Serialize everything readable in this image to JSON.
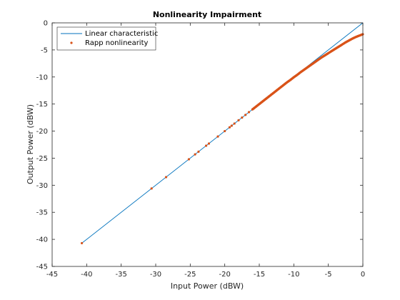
{
  "chart_data": {
    "type": "line",
    "title": "Nonlinearity Impairment",
    "xlabel": "Input Power (dBW)",
    "ylabel": "Output Power (dBW)",
    "xlim": [
      -45,
      0
    ],
    "ylim": [
      -45,
      0
    ],
    "xticks": [
      -45,
      -40,
      -35,
      -30,
      -25,
      -20,
      -15,
      -10,
      -5,
      0
    ],
    "yticks": [
      0,
      -5,
      -10,
      -15,
      -20,
      -25,
      -30,
      -35,
      -40,
      -45
    ],
    "grid": false,
    "legend_position": "top-left",
    "series": [
      {
        "name": "Linear characteristic",
        "style": "line",
        "color": "#0072BD",
        "x": [
          -40.7,
          0
        ],
        "y": [
          -40.7,
          0
        ]
      },
      {
        "name": "Rapp nonlinearity",
        "style": "markers",
        "marker": "dot",
        "color": "#D95319",
        "x": [
          -40.7,
          -30.6,
          -28.5,
          -25.2,
          -24.3,
          -23.8,
          -22.7,
          -22.3,
          -21.0,
          -20.0,
          -19.3,
          -19.0,
          -18.6,
          -18.0,
          -17.5,
          -17.0,
          -16.5,
          -16.0,
          -15.5,
          -15.0,
          -14.5,
          -14.0,
          -13.5,
          -13.0,
          -12.5,
          -12.0,
          -11.5,
          -11.0,
          -10.5,
          -10.0,
          -9.5,
          -9.0,
          -8.5,
          -8.0,
          -7.5,
          -7.0,
          -6.5,
          -6.0,
          -5.5,
          -5.0,
          -4.5,
          -4.0,
          -3.5,
          -3.0,
          -2.5,
          -2.0,
          -1.5,
          -1.0,
          -0.5,
          0
        ],
        "y": [
          -40.7,
          -30.6,
          -28.5,
          -25.2,
          -24.3,
          -23.8,
          -22.7,
          -22.3,
          -21.0,
          -20.0,
          -19.3,
          -19.0,
          -18.6,
          -18.0,
          -17.5,
          -17.0,
          -16.5,
          -16.0,
          -15.5,
          -15.0,
          -14.5,
          -14.0,
          -13.5,
          -13.0,
          -12.5,
          -12.0,
          -11.5,
          -11.0,
          -10.55,
          -10.05,
          -9.6,
          -9.1,
          -8.65,
          -8.2,
          -7.75,
          -7.3,
          -6.85,
          -6.4,
          -6.0,
          -5.6,
          -5.2,
          -4.8,
          -4.4,
          -4.0,
          -3.6,
          -3.25,
          -2.9,
          -2.6,
          -2.35,
          -2.1
        ]
      }
    ]
  }
}
